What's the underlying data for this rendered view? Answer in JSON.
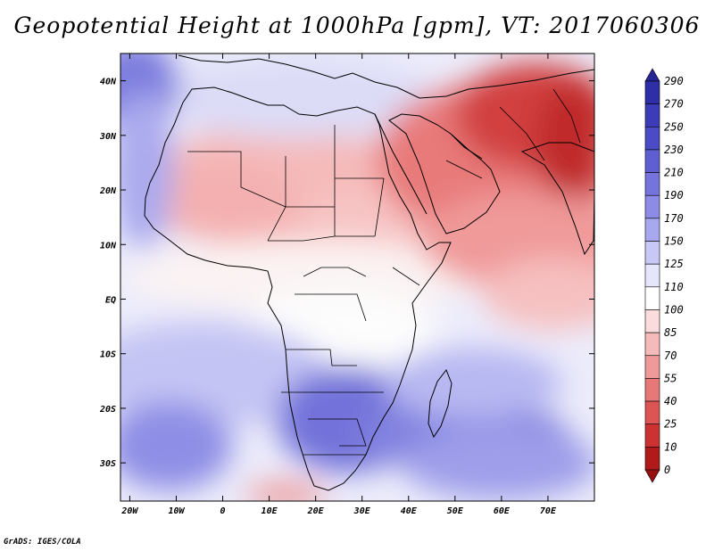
{
  "title": "Geopotential Height at 1000hPa [gpm], VT: 2017060306",
  "credit": "GrADS: IGES/COLA",
  "map": {
    "lon_range": [
      -22,
      80
    ],
    "lat_range": [
      -37,
      45
    ],
    "x_ticks": [
      {
        "value": -20,
        "label": "20W"
      },
      {
        "value": -10,
        "label": "10W"
      },
      {
        "value": 0,
        "label": "0"
      },
      {
        "value": 10,
        "label": "10E"
      },
      {
        "value": 20,
        "label": "20E"
      },
      {
        "value": 30,
        "label": "30E"
      },
      {
        "value": 40,
        "label": "40E"
      },
      {
        "value": 50,
        "label": "50E"
      },
      {
        "value": 60,
        "label": "60E"
      },
      {
        "value": 70,
        "label": "70E"
      }
    ],
    "y_ticks": [
      {
        "value": 40,
        "label": "40N"
      },
      {
        "value": 30,
        "label": "30N"
      },
      {
        "value": 20,
        "label": "20N"
      },
      {
        "value": 10,
        "label": "10N"
      },
      {
        "value": 0,
        "label": "EQ"
      },
      {
        "value": -10,
        "label": "10S"
      },
      {
        "value": -20,
        "label": "20S"
      },
      {
        "value": -30,
        "label": "30S"
      }
    ]
  },
  "colorbar": {
    "labels": [
      "290",
      "270",
      "250",
      "230",
      "210",
      "190",
      "170",
      "150",
      "125",
      "110",
      "100",
      "85",
      "70",
      "55",
      "40",
      "25",
      "10",
      "0"
    ],
    "colors": [
      "#262696",
      "#2e2ea6",
      "#3c3cb8",
      "#4b4bc6",
      "#5f5fd2",
      "#7474dc",
      "#8c8ce6",
      "#a8a8ee",
      "#c8c8f6",
      "#e6e6fb",
      "#ffffff",
      "#fbdcdc",
      "#f5baba",
      "#ee9a9a",
      "#e67878",
      "#dc5454",
      "#cc3232",
      "#b01a1a",
      "#961010"
    ]
  }
}
